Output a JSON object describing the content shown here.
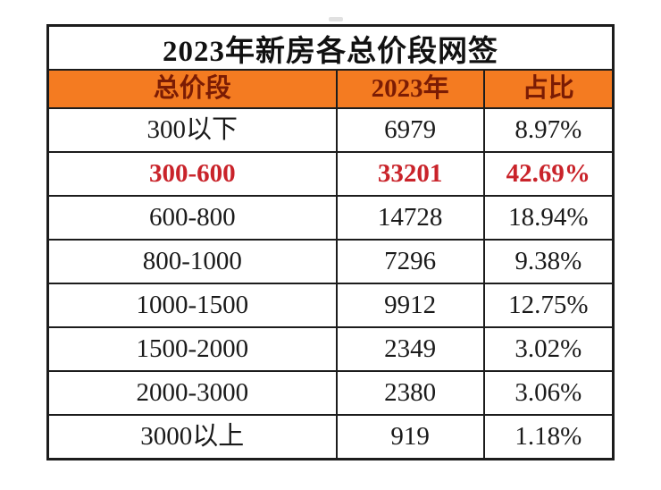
{
  "table": {
    "title": "2023年新房各总价段网签",
    "columns": {
      "range": "总价段",
      "count": "2023年",
      "share": "占比"
    },
    "rows": [
      {
        "range": "300以下",
        "count": "6979",
        "share": "8.97%",
        "highlight": false
      },
      {
        "range": "300-600",
        "count": "33201",
        "share": "42.69%",
        "highlight": true
      },
      {
        "range": "600-800",
        "count": "14728",
        "share": "18.94%",
        "highlight": false
      },
      {
        "range": "800-1000",
        "count": "7296",
        "share": "9.38%",
        "highlight": false
      },
      {
        "range": "1000-1500",
        "count": "9912",
        "share": "12.75%",
        "highlight": false
      },
      {
        "range": "1500-2000",
        "count": "2349",
        "share": "3.02%",
        "highlight": false
      },
      {
        "range": "2000-3000",
        "count": "2380",
        "share": "3.06%",
        "highlight": false
      },
      {
        "range": "3000以上",
        "count": "919",
        "share": "1.18%",
        "highlight": false
      }
    ],
    "colors": {
      "header_bg": "#F47B21",
      "header_text": "#7B1C04",
      "highlight_text": "#C9232A",
      "body_text": "#1A1A1A",
      "border": "#1C1C1C"
    }
  },
  "chart_data": {
    "type": "table",
    "title": "2023年新房各总价段网签",
    "columns": [
      "总价段",
      "2023年",
      "占比"
    ],
    "rows": [
      [
        "300以下",
        6979,
        "8.97%"
      ],
      [
        "300-600",
        33201,
        "42.69%"
      ],
      [
        "600-800",
        14728,
        "18.94%"
      ],
      [
        "800-1000",
        7296,
        "9.38%"
      ],
      [
        "1000-1500",
        9912,
        "12.75%"
      ],
      [
        "1500-2000",
        2349,
        "3.02%"
      ],
      [
        "2000-3000",
        2380,
        "3.06%"
      ],
      [
        "3000以上",
        919,
        "1.18%"
      ]
    ],
    "highlighted_row": "300-600",
    "layout": {
      "header_fill": "#F47B21",
      "grid": true
    }
  }
}
